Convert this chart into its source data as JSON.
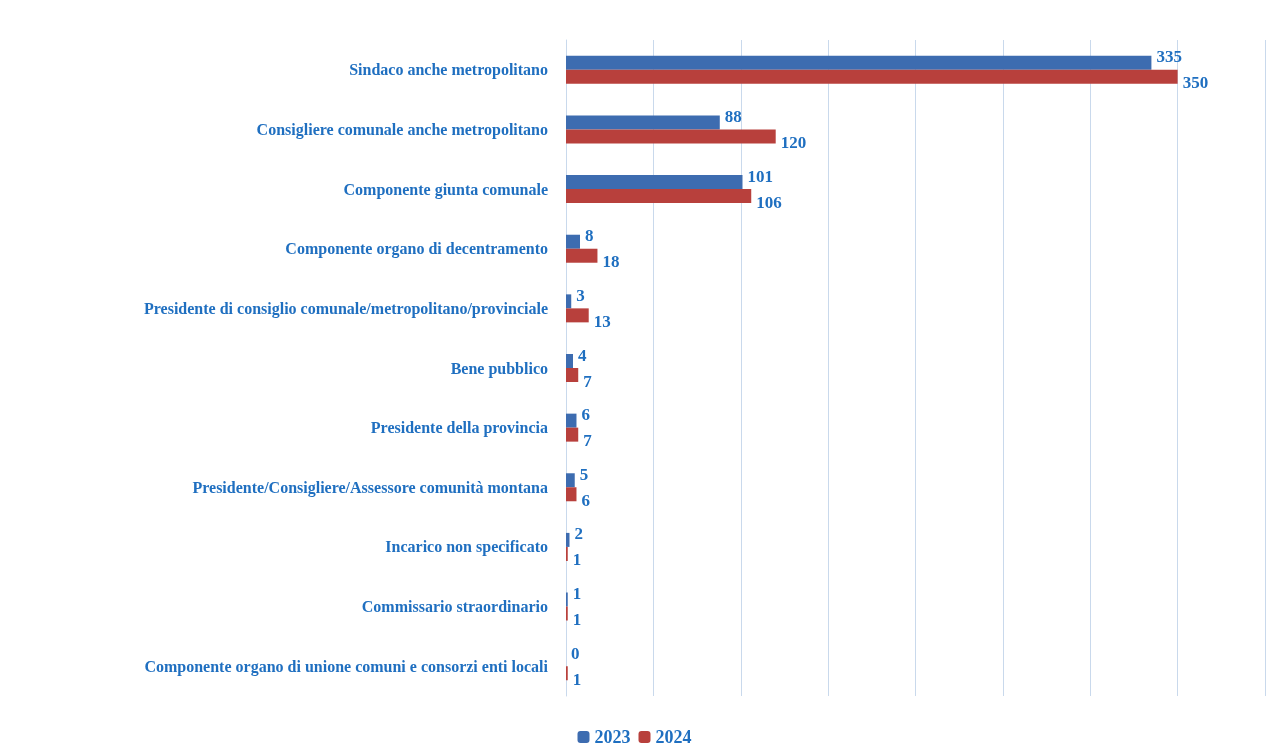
{
  "chart_data": {
    "type": "bar",
    "orientation": "horizontal",
    "categories": [
      "Sindaco anche metropolitano",
      "Consigliere comunale anche metropolitano",
      "Componente giunta comunale",
      "Componente organo di decentramento",
      "Presidente di consiglio comunale/metropolitano/provinciale",
      "Bene pubblico",
      "Presidente della provincia",
      "Presidente/Consigliere/Assessore comunità montana",
      "Incarico non specificato",
      "Commissario straordinario",
      "Componente organo di unione comuni e consorzi enti locali"
    ],
    "series": [
      {
        "name": "2023",
        "color": "#3d6cb0",
        "values": [
          335,
          88,
          101,
          8,
          3,
          4,
          6,
          5,
          2,
          1,
          0
        ]
      },
      {
        "name": "2024",
        "color": "#b8403c",
        "values": [
          350,
          120,
          106,
          18,
          13,
          7,
          7,
          6,
          1,
          1,
          1
        ]
      }
    ],
    "xlim": [
      0,
      400
    ],
    "xticks": [
      {
        "value": 0,
        "label": null
      },
      {
        "value": 50,
        "label": null
      },
      {
        "value": 100,
        "label": null
      },
      {
        "value": 150,
        "label": null
      },
      {
        "value": 200,
        "label": null
      },
      {
        "value": 250,
        "label": null
      },
      {
        "value": 300,
        "label": null
      },
      {
        "value": 350,
        "label": null
      },
      {
        "value": 400,
        "label": null
      }
    ],
    "grid": "x",
    "legend": "bottom",
    "data_labels": true,
    "tick_labels": "y"
  }
}
